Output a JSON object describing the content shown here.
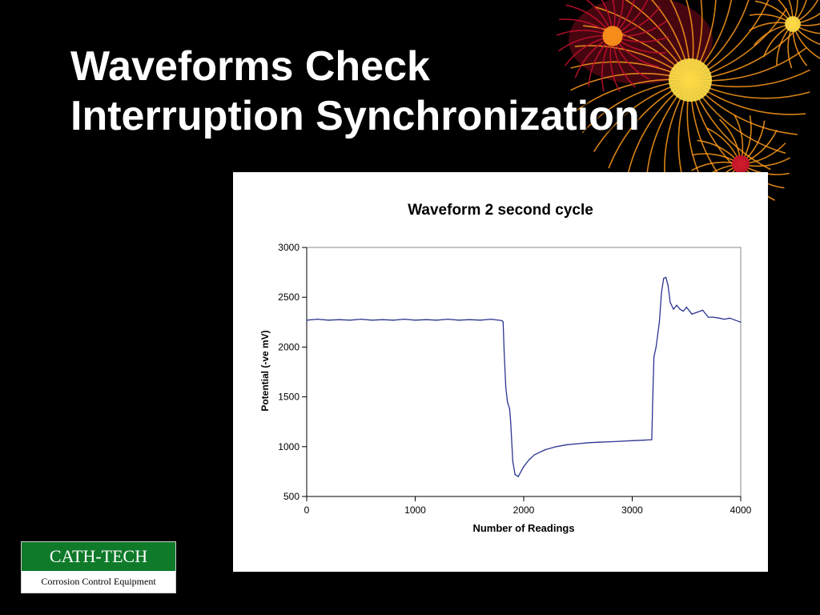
{
  "slide": {
    "title_line1": "Waveforms Check",
    "title_line2": "Interruption Synchronization",
    "decoration_icon": "fireworks-burst-icon"
  },
  "logo": {
    "name": "CATH-TECH",
    "tagline": "Corrosion Control Equipment",
    "brand_color": "#0f7a2a"
  },
  "colors": {
    "background": "#000000",
    "title_text": "#ffffff",
    "series_line": "#2b3590",
    "firework_primary": "#ff9a1a",
    "firework_core": "#ffe04a",
    "firework_accent": "#c8102e"
  },
  "chart_data": {
    "type": "line",
    "title": "Waveform 2 second cycle",
    "xlabel": "Number of Readings",
    "ylabel": "Potential (-ve mV)",
    "xlim": [
      0,
      4000
    ],
    "ylim": [
      500,
      3000
    ],
    "x_ticks": [
      0,
      1000,
      2000,
      3000,
      4000
    ],
    "y_ticks": [
      500,
      1000,
      1500,
      2000,
      2500,
      3000
    ],
    "grid": false,
    "legend": "none",
    "series": [
      {
        "x": [
          0,
          100,
          200,
          300,
          400,
          500,
          600,
          700,
          800,
          900,
          1000,
          1100,
          1200,
          1300,
          1400,
          1500,
          1600,
          1700,
          1800,
          1810,
          1820,
          1835,
          1850,
          1870,
          1880,
          1900,
          1920,
          1950,
          2000,
          2050,
          2100,
          2200,
          2300,
          2400,
          2500,
          2600,
          2700,
          2800,
          2900,
          3000,
          3100,
          3180,
          3190,
          3200,
          3220,
          3250,
          3270,
          3290,
          3310,
          3330,
          3350,
          3380,
          3410,
          3440,
          3470,
          3500,
          3550,
          3600,
          3650,
          3700,
          3750,
          3800,
          3850,
          3900,
          3950,
          4000
        ],
        "values": [
          2270,
          2280,
          2270,
          2275,
          2270,
          2280,
          2270,
          2275,
          2270,
          2280,
          2270,
          2275,
          2270,
          2280,
          2270,
          2275,
          2270,
          2280,
          2265,
          2250,
          1950,
          1600,
          1450,
          1380,
          1250,
          850,
          720,
          700,
          800,
          870,
          920,
          970,
          1000,
          1020,
          1030,
          1040,
          1045,
          1050,
          1055,
          1060,
          1065,
          1070,
          1500,
          1900,
          2000,
          2250,
          2550,
          2690,
          2700,
          2620,
          2450,
          2380,
          2420,
          2380,
          2360,
          2400,
          2330,
          2350,
          2370,
          2300,
          2300,
          2290,
          2280,
          2290,
          2270,
          2250
        ]
      }
    ]
  }
}
